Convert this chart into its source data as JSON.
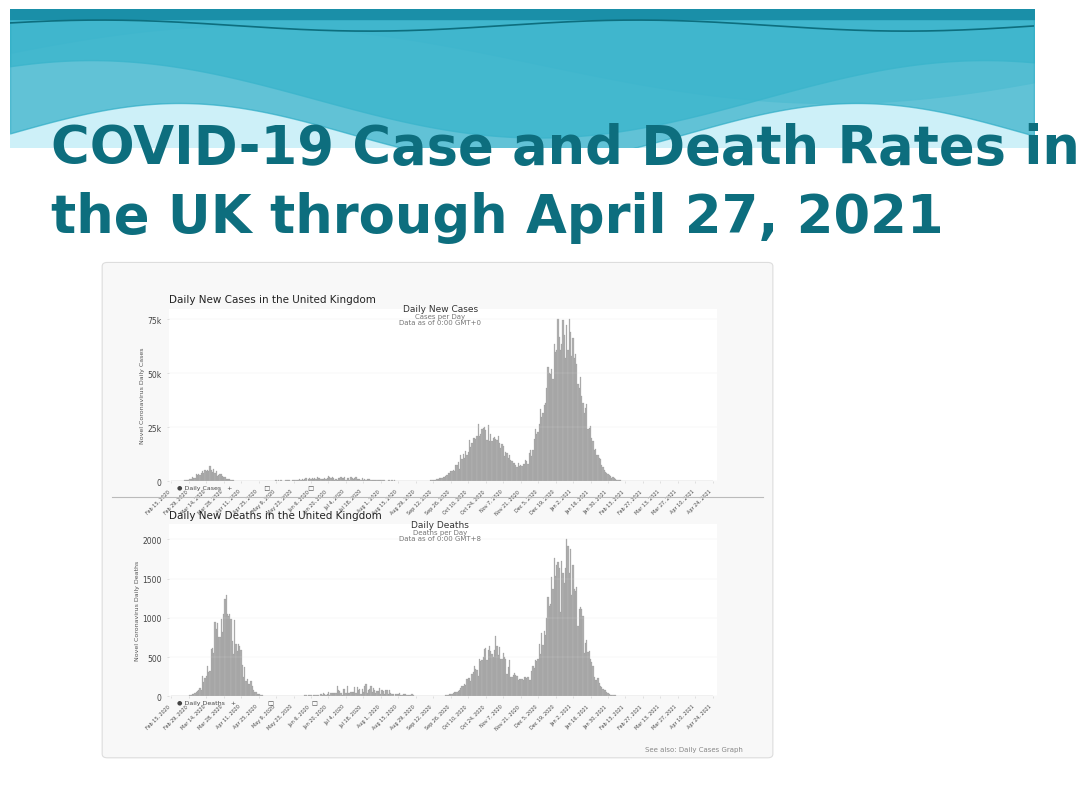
{
  "title_line1": "COVID-19 Case and Death Rates in",
  "title_line2": "the UK through April 27, 2021",
  "title_color": "#0d6e7e",
  "bg_color": "#f0f8fb",
  "chart1_title": "Daily New Cases in the United Kingdom",
  "chart1_subtitle": "Daily New Cases",
  "chart1_sub2": "Cases per Day",
  "chart1_sub3": "Data as of 0:00 GMT+0",
  "chart1_ylabel": "Novel Coronavirus Daily Cases",
  "chart2_title": "Daily New Deaths in the United Kingdom",
  "chart2_subtitle": "Daily Deaths",
  "chart2_sub2": "Deaths per Day",
  "chart2_sub3": "Data as of 0:00 GMT+8",
  "chart2_ylabel": "Novel Coronavirus Daily Deaths",
  "bar_color": "#b0b0b0",
  "bar_edge_color": "#909090",
  "footer_text": "See also: Daily Cases Graph",
  "wave_bg_top": "#5ec8d8",
  "wave_mid": "#7dd8e8",
  "wave_light": "#b8ecf4",
  "wave_dark_line": "#2a9ab8",
  "chart_box_color": "#f5f5f5",
  "separator_color": "#aaaaaa"
}
